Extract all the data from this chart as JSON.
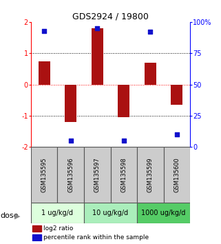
{
  "title": "GDS2924 / 19800",
  "samples": [
    "GSM135595",
    "GSM135596",
    "GSM135597",
    "GSM135598",
    "GSM135599",
    "GSM135600"
  ],
  "log2_ratio": [
    0.75,
    -1.2,
    1.8,
    -1.05,
    0.7,
    -0.65
  ],
  "percentile_rank": [
    93,
    5,
    95,
    5,
    92,
    10
  ],
  "bar_color": "#aa1111",
  "dot_color": "#1111cc",
  "ylim_left": [
    -2,
    2
  ],
  "ylim_right": [
    0,
    100
  ],
  "yticks_left": [
    -2,
    -1,
    0,
    1,
    2
  ],
  "yticks_right": [
    0,
    25,
    50,
    75,
    100
  ],
  "yticklabels_right": [
    "0",
    "25",
    "50",
    "75",
    "100%"
  ],
  "hlines": [
    -1,
    0,
    1
  ],
  "hline_colors": [
    "black",
    "red",
    "black"
  ],
  "hline_styles": [
    "dotted",
    "dotted",
    "dotted"
  ],
  "dose_groups": [
    {
      "label": "1 ug/kg/d",
      "indices": [
        0,
        1
      ],
      "color": "#ddffdd"
    },
    {
      "label": "10 ug/kg/d",
      "indices": [
        2,
        3
      ],
      "color": "#aaeebb"
    },
    {
      "label": "1000 ug/kg/d",
      "indices": [
        4,
        5
      ],
      "color": "#55cc66"
    }
  ],
  "dose_label": "dose",
  "legend_red_label": "log2 ratio",
  "legend_blue_label": "percentile rank within the sample",
  "bar_width": 0.45,
  "dot_size": 25
}
